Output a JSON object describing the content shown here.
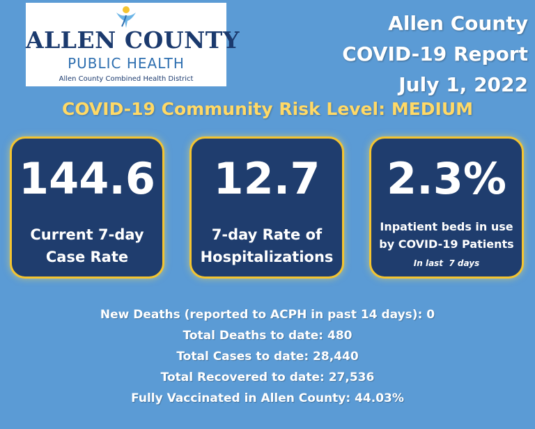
{
  "logo": {
    "line1": "ALLEN COUNTY",
    "line2": "PUBLIC HEALTH",
    "line3": "Allen County Combined Health District",
    "icon": "person-figure-icon",
    "colors": {
      "navy": "#1b3a6e",
      "blue": "#2e6fb0",
      "gold": "#f4c430",
      "sky": "#6ab4e6"
    }
  },
  "report": {
    "line1": "Allen County",
    "line2": "COVID-19 Report",
    "line3": "July 1, 2022"
  },
  "risk_level": "COVID-19 Community Risk Level: MEDIUM",
  "cards": [
    {
      "value": "144.6",
      "label_line1": "Current 7-day",
      "label_line2": "Case Rate"
    },
    {
      "value": "12.7",
      "label_line1": "7-day Rate of",
      "label_line2": "Hospitalizations"
    },
    {
      "value": "2.3%",
      "label_line1": "Inpatient beds in use",
      "label_line2": "by COVID-19 Patients",
      "note": "In last  7 days"
    }
  ],
  "stats": [
    "New Deaths (reported to ACPH in past 14 days): 0",
    "Total Deaths to date: 480",
    "Total Cases to date: 28,440",
    "Total Recovered to date: 27,536",
    "Fully Vaccinated in Allen County: 44.03%"
  ],
  "colors": {
    "background": "#5b9bd5",
    "card_fill": "#1f3d6e",
    "card_border": "#f4c430",
    "risk_text": "#ffd966"
  }
}
